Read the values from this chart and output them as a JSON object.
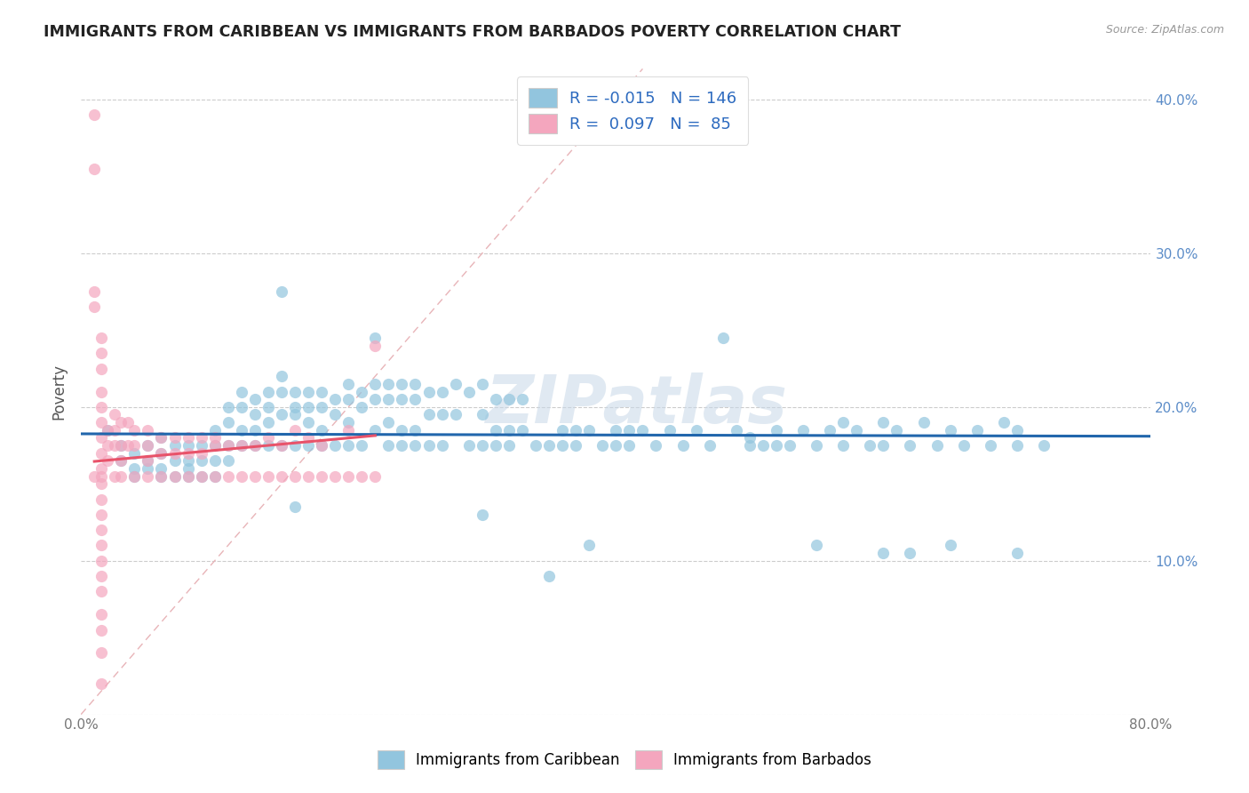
{
  "title": "IMMIGRANTS FROM CARIBBEAN VS IMMIGRANTS FROM BARBADOS POVERTY CORRELATION CHART",
  "source": "Source: ZipAtlas.com",
  "ylabel": "Poverty",
  "x_min": 0.0,
  "x_max": 0.8,
  "y_min": 0.0,
  "y_max": 0.42,
  "x_tick_positions": [
    0.0,
    0.1,
    0.2,
    0.3,
    0.4,
    0.5,
    0.6,
    0.7,
    0.8
  ],
  "x_tick_labels": [
    "0.0%",
    "",
    "",
    "",
    "",
    "",
    "",
    "",
    "80.0%"
  ],
  "y_tick_positions": [
    0.0,
    0.1,
    0.2,
    0.3,
    0.4
  ],
  "y_tick_labels": [
    "",
    "10.0%",
    "20.0%",
    "30.0%",
    "40.0%"
  ],
  "legend1_label": "Immigrants from Caribbean",
  "legend2_label": "Immigrants from Barbados",
  "R1": -0.015,
  "N1": 146,
  "R2": 0.097,
  "N2": 85,
  "blue_color": "#92c5de",
  "pink_color": "#f4a6be",
  "trendline1_color": "#2166ac",
  "trendline2_color": "#e8536a",
  "diagonal_color": "#e8b4b8",
  "watermark": "ZIPatlas",
  "blue_scatter": [
    [
      0.02,
      0.185
    ],
    [
      0.03,
      0.175
    ],
    [
      0.03,
      0.165
    ],
    [
      0.04,
      0.17
    ],
    [
      0.04,
      0.16
    ],
    [
      0.04,
      0.155
    ],
    [
      0.05,
      0.175
    ],
    [
      0.05,
      0.165
    ],
    [
      0.05,
      0.16
    ],
    [
      0.06,
      0.18
    ],
    [
      0.06,
      0.17
    ],
    [
      0.06,
      0.16
    ],
    [
      0.06,
      0.155
    ],
    [
      0.07,
      0.175
    ],
    [
      0.07,
      0.165
    ],
    [
      0.07,
      0.155
    ],
    [
      0.08,
      0.175
    ],
    [
      0.08,
      0.165
    ],
    [
      0.08,
      0.16
    ],
    [
      0.08,
      0.155
    ],
    [
      0.09,
      0.175
    ],
    [
      0.09,
      0.165
    ],
    [
      0.09,
      0.155
    ],
    [
      0.1,
      0.185
    ],
    [
      0.1,
      0.175
    ],
    [
      0.1,
      0.165
    ],
    [
      0.1,
      0.155
    ],
    [
      0.11,
      0.2
    ],
    [
      0.11,
      0.19
    ],
    [
      0.11,
      0.175
    ],
    [
      0.11,
      0.165
    ],
    [
      0.12,
      0.21
    ],
    [
      0.12,
      0.2
    ],
    [
      0.12,
      0.185
    ],
    [
      0.12,
      0.175
    ],
    [
      0.13,
      0.205
    ],
    [
      0.13,
      0.195
    ],
    [
      0.13,
      0.185
    ],
    [
      0.13,
      0.175
    ],
    [
      0.14,
      0.21
    ],
    [
      0.14,
      0.2
    ],
    [
      0.14,
      0.19
    ],
    [
      0.14,
      0.175
    ],
    [
      0.15,
      0.275
    ],
    [
      0.15,
      0.22
    ],
    [
      0.15,
      0.21
    ],
    [
      0.15,
      0.195
    ],
    [
      0.15,
      0.175
    ],
    [
      0.16,
      0.21
    ],
    [
      0.16,
      0.2
    ],
    [
      0.16,
      0.195
    ],
    [
      0.16,
      0.175
    ],
    [
      0.17,
      0.21
    ],
    [
      0.17,
      0.2
    ],
    [
      0.17,
      0.19
    ],
    [
      0.17,
      0.175
    ],
    [
      0.18,
      0.21
    ],
    [
      0.18,
      0.2
    ],
    [
      0.18,
      0.185
    ],
    [
      0.18,
      0.175
    ],
    [
      0.19,
      0.205
    ],
    [
      0.19,
      0.195
    ],
    [
      0.19,
      0.175
    ],
    [
      0.2,
      0.215
    ],
    [
      0.2,
      0.205
    ],
    [
      0.2,
      0.19
    ],
    [
      0.2,
      0.175
    ],
    [
      0.21,
      0.21
    ],
    [
      0.21,
      0.2
    ],
    [
      0.21,
      0.175
    ],
    [
      0.22,
      0.245
    ],
    [
      0.22,
      0.215
    ],
    [
      0.22,
      0.205
    ],
    [
      0.22,
      0.185
    ],
    [
      0.23,
      0.215
    ],
    [
      0.23,
      0.205
    ],
    [
      0.23,
      0.19
    ],
    [
      0.23,
      0.175
    ],
    [
      0.24,
      0.215
    ],
    [
      0.24,
      0.205
    ],
    [
      0.24,
      0.185
    ],
    [
      0.24,
      0.175
    ],
    [
      0.25,
      0.215
    ],
    [
      0.25,
      0.205
    ],
    [
      0.25,
      0.185
    ],
    [
      0.25,
      0.175
    ],
    [
      0.26,
      0.21
    ],
    [
      0.26,
      0.195
    ],
    [
      0.26,
      0.175
    ],
    [
      0.27,
      0.21
    ],
    [
      0.27,
      0.195
    ],
    [
      0.27,
      0.175
    ],
    [
      0.28,
      0.215
    ],
    [
      0.28,
      0.195
    ],
    [
      0.29,
      0.21
    ],
    [
      0.29,
      0.175
    ],
    [
      0.3,
      0.215
    ],
    [
      0.3,
      0.195
    ],
    [
      0.3,
      0.175
    ],
    [
      0.31,
      0.205
    ],
    [
      0.31,
      0.185
    ],
    [
      0.31,
      0.175
    ],
    [
      0.32,
      0.205
    ],
    [
      0.32,
      0.185
    ],
    [
      0.32,
      0.175
    ],
    [
      0.33,
      0.205
    ],
    [
      0.33,
      0.185
    ],
    [
      0.34,
      0.175
    ],
    [
      0.35,
      0.175
    ],
    [
      0.36,
      0.185
    ],
    [
      0.36,
      0.175
    ],
    [
      0.37,
      0.185
    ],
    [
      0.37,
      0.175
    ],
    [
      0.38,
      0.185
    ],
    [
      0.39,
      0.175
    ],
    [
      0.4,
      0.185
    ],
    [
      0.4,
      0.175
    ],
    [
      0.41,
      0.185
    ],
    [
      0.41,
      0.175
    ],
    [
      0.42,
      0.185
    ],
    [
      0.43,
      0.175
    ],
    [
      0.44,
      0.185
    ],
    [
      0.45,
      0.175
    ],
    [
      0.46,
      0.185
    ],
    [
      0.47,
      0.175
    ],
    [
      0.48,
      0.245
    ],
    [
      0.49,
      0.185
    ],
    [
      0.5,
      0.18
    ],
    [
      0.5,
      0.175
    ],
    [
      0.51,
      0.175
    ],
    [
      0.52,
      0.185
    ],
    [
      0.52,
      0.175
    ],
    [
      0.53,
      0.175
    ],
    [
      0.54,
      0.185
    ],
    [
      0.55,
      0.175
    ],
    [
      0.56,
      0.185
    ],
    [
      0.57,
      0.19
    ],
    [
      0.57,
      0.175
    ],
    [
      0.58,
      0.185
    ],
    [
      0.59,
      0.175
    ],
    [
      0.6,
      0.19
    ],
    [
      0.6,
      0.175
    ],
    [
      0.61,
      0.185
    ],
    [
      0.62,
      0.175
    ],
    [
      0.63,
      0.19
    ],
    [
      0.64,
      0.175
    ],
    [
      0.65,
      0.185
    ],
    [
      0.66,
      0.175
    ],
    [
      0.67,
      0.185
    ],
    [
      0.68,
      0.175
    ],
    [
      0.69,
      0.19
    ],
    [
      0.7,
      0.185
    ],
    [
      0.7,
      0.175
    ],
    [
      0.72,
      0.175
    ],
    [
      0.35,
      0.09
    ],
    [
      0.16,
      0.135
    ],
    [
      0.3,
      0.13
    ],
    [
      0.38,
      0.11
    ],
    [
      0.55,
      0.11
    ],
    [
      0.6,
      0.105
    ],
    [
      0.62,
      0.105
    ],
    [
      0.65,
      0.11
    ],
    [
      0.7,
      0.105
    ]
  ],
  "pink_scatter": [
    [
      0.01,
      0.39
    ],
    [
      0.01,
      0.355
    ],
    [
      0.01,
      0.275
    ],
    [
      0.01,
      0.265
    ],
    [
      0.015,
      0.245
    ],
    [
      0.015,
      0.235
    ],
    [
      0.015,
      0.225
    ],
    [
      0.015,
      0.21
    ],
    [
      0.015,
      0.2
    ],
    [
      0.015,
      0.19
    ],
    [
      0.015,
      0.18
    ],
    [
      0.015,
      0.17
    ],
    [
      0.015,
      0.16
    ],
    [
      0.015,
      0.15
    ],
    [
      0.015,
      0.14
    ],
    [
      0.015,
      0.13
    ],
    [
      0.015,
      0.12
    ],
    [
      0.015,
      0.11
    ],
    [
      0.015,
      0.1
    ],
    [
      0.015,
      0.09
    ],
    [
      0.015,
      0.08
    ],
    [
      0.015,
      0.065
    ],
    [
      0.015,
      0.055
    ],
    [
      0.015,
      0.04
    ],
    [
      0.015,
      0.02
    ],
    [
      0.02,
      0.185
    ],
    [
      0.02,
      0.175
    ],
    [
      0.02,
      0.165
    ],
    [
      0.025,
      0.195
    ],
    [
      0.025,
      0.185
    ],
    [
      0.025,
      0.175
    ],
    [
      0.03,
      0.19
    ],
    [
      0.03,
      0.175
    ],
    [
      0.03,
      0.165
    ],
    [
      0.035,
      0.19
    ],
    [
      0.035,
      0.175
    ],
    [
      0.04,
      0.185
    ],
    [
      0.04,
      0.175
    ],
    [
      0.05,
      0.185
    ],
    [
      0.05,
      0.175
    ],
    [
      0.05,
      0.165
    ],
    [
      0.06,
      0.18
    ],
    [
      0.06,
      0.17
    ],
    [
      0.07,
      0.18
    ],
    [
      0.07,
      0.17
    ],
    [
      0.08,
      0.18
    ],
    [
      0.08,
      0.17
    ],
    [
      0.09,
      0.18
    ],
    [
      0.09,
      0.17
    ],
    [
      0.1,
      0.18
    ],
    [
      0.1,
      0.175
    ],
    [
      0.11,
      0.175
    ],
    [
      0.12,
      0.175
    ],
    [
      0.13,
      0.175
    ],
    [
      0.14,
      0.18
    ],
    [
      0.15,
      0.175
    ],
    [
      0.16,
      0.185
    ],
    [
      0.17,
      0.18
    ],
    [
      0.18,
      0.175
    ],
    [
      0.2,
      0.185
    ],
    [
      0.22,
      0.24
    ],
    [
      0.025,
      0.155
    ],
    [
      0.03,
      0.155
    ],
    [
      0.04,
      0.155
    ],
    [
      0.05,
      0.155
    ],
    [
      0.06,
      0.155
    ],
    [
      0.07,
      0.155
    ],
    [
      0.08,
      0.155
    ],
    [
      0.09,
      0.155
    ],
    [
      0.1,
      0.155
    ],
    [
      0.11,
      0.155
    ],
    [
      0.12,
      0.155
    ],
    [
      0.13,
      0.155
    ],
    [
      0.14,
      0.155
    ],
    [
      0.15,
      0.155
    ],
    [
      0.16,
      0.155
    ],
    [
      0.17,
      0.155
    ],
    [
      0.18,
      0.155
    ],
    [
      0.19,
      0.155
    ],
    [
      0.2,
      0.155
    ],
    [
      0.21,
      0.155
    ],
    [
      0.22,
      0.155
    ],
    [
      0.01,
      0.155
    ],
    [
      0.015,
      0.155
    ]
  ]
}
